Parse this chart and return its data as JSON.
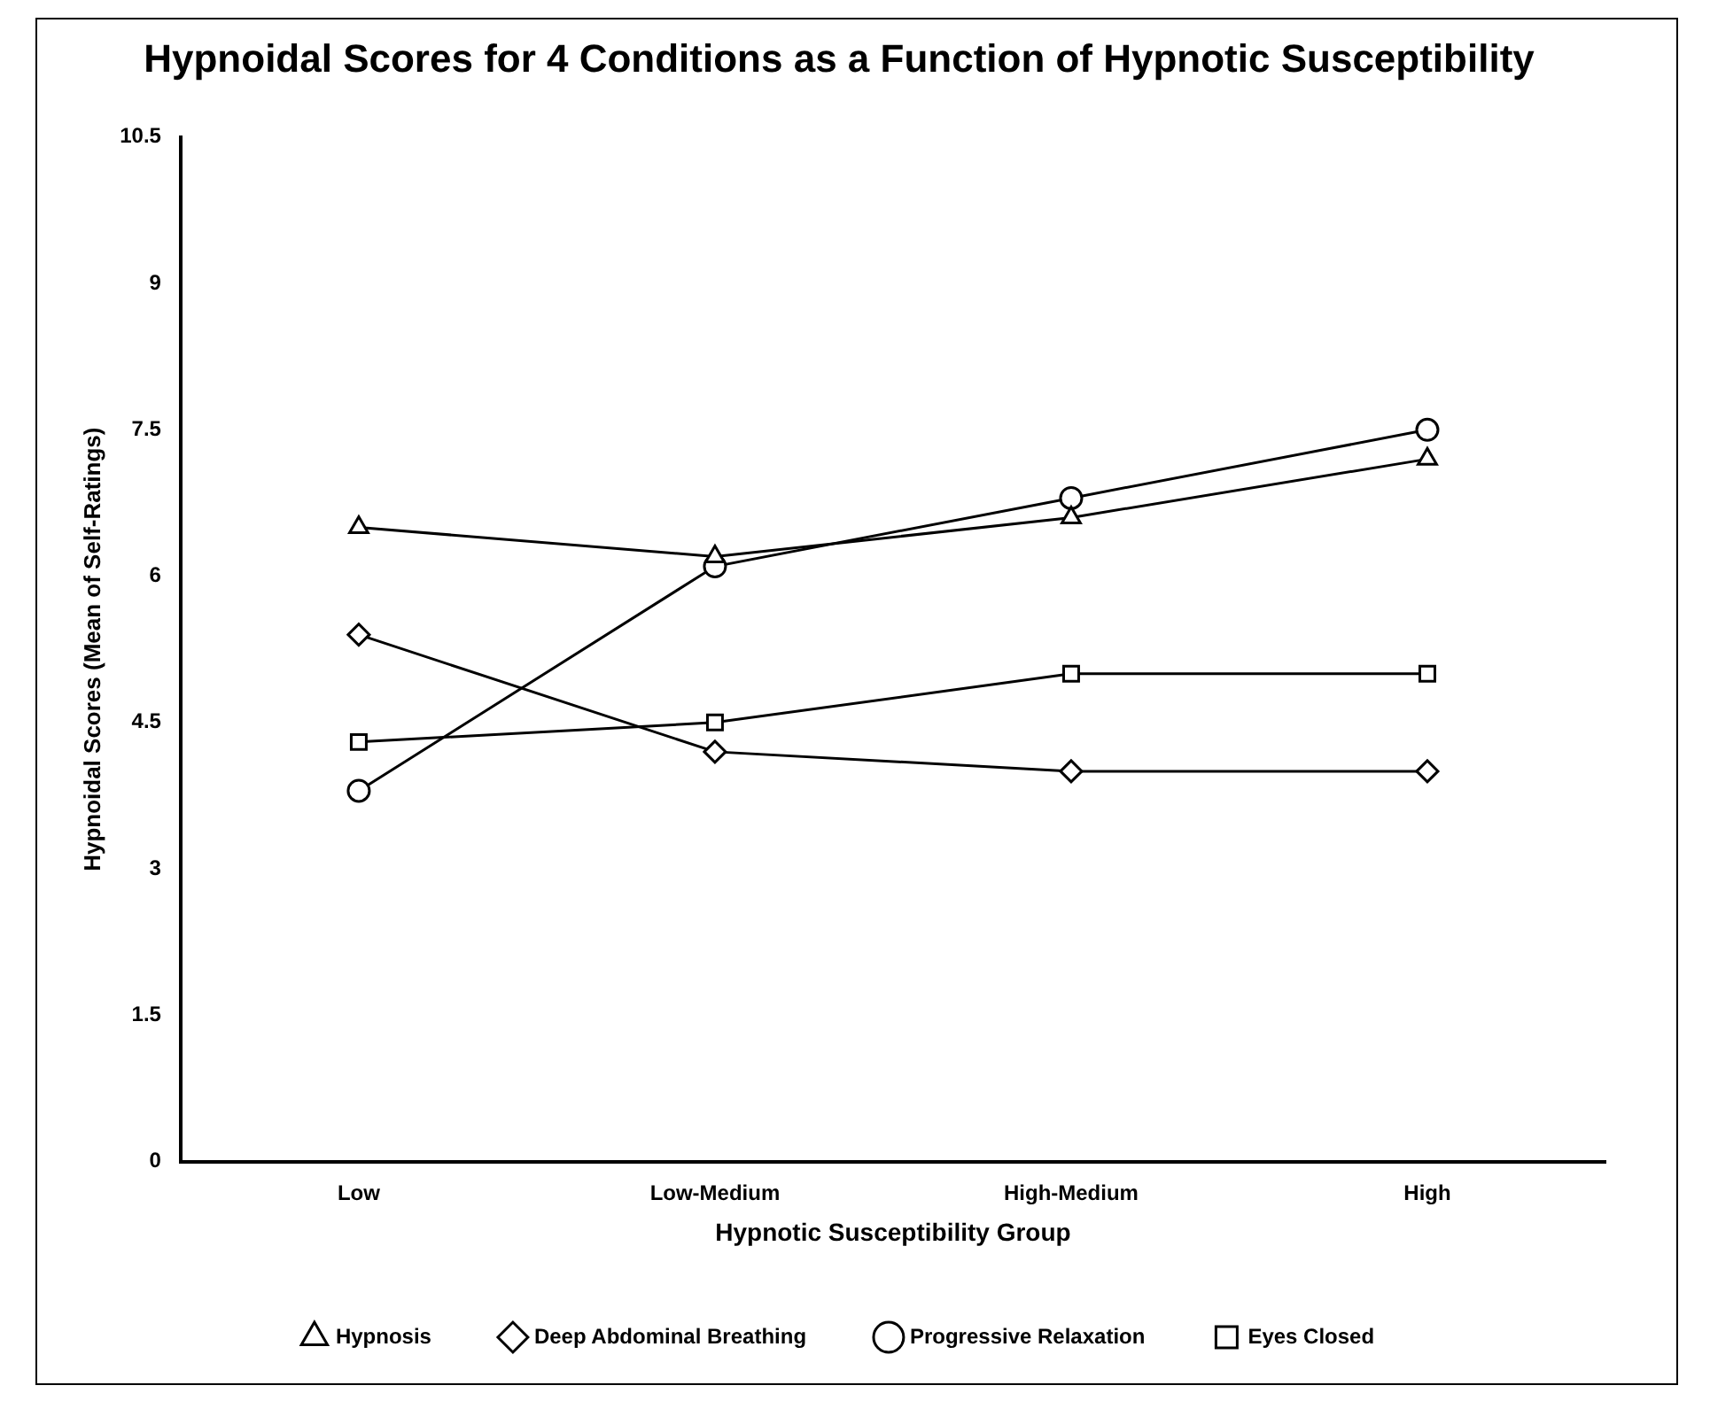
{
  "chart_data": {
    "type": "line",
    "title": "Hypnoidal Scores for 4 Conditions as a Function of Hypnotic Susceptibility",
    "xlabel": "Hypnotic Susceptibility Group",
    "ylabel": "Hypnoidal Scores (Mean of Self-Ratings)",
    "categories": [
      "Low",
      "Low-Medium",
      "High-Medium",
      "High"
    ],
    "series": [
      {
        "name": "Eyes Closed",
        "color": "#000000",
        "marker": "square",
        "values": [
          4.3,
          4.5,
          5.0,
          5.0
        ]
      },
      {
        "name": "Progressive Relaxation",
        "color": "#000000",
        "marker": "circle",
        "values": [
          3.8,
          6.1,
          6.8,
          7.5
        ]
      },
      {
        "name": "Deep Abdominal Breathing",
        "color": "#000000",
        "marker": "diamond",
        "values": [
          5.4,
          4.2,
          4.0,
          4.0
        ]
      },
      {
        "name": "Hypnosis",
        "color": "#000000",
        "marker": "triangle",
        "values": [
          6.5,
          6.2,
          6.6,
          7.2
        ]
      }
    ],
    "ylim": [
      0,
      10.5
    ],
    "yticks": [
      0,
      1.5,
      3,
      4.5,
      6,
      7.5,
      9,
      10.5
    ],
    "grid": false,
    "legend": "bottom",
    "line_style": "solid"
  }
}
